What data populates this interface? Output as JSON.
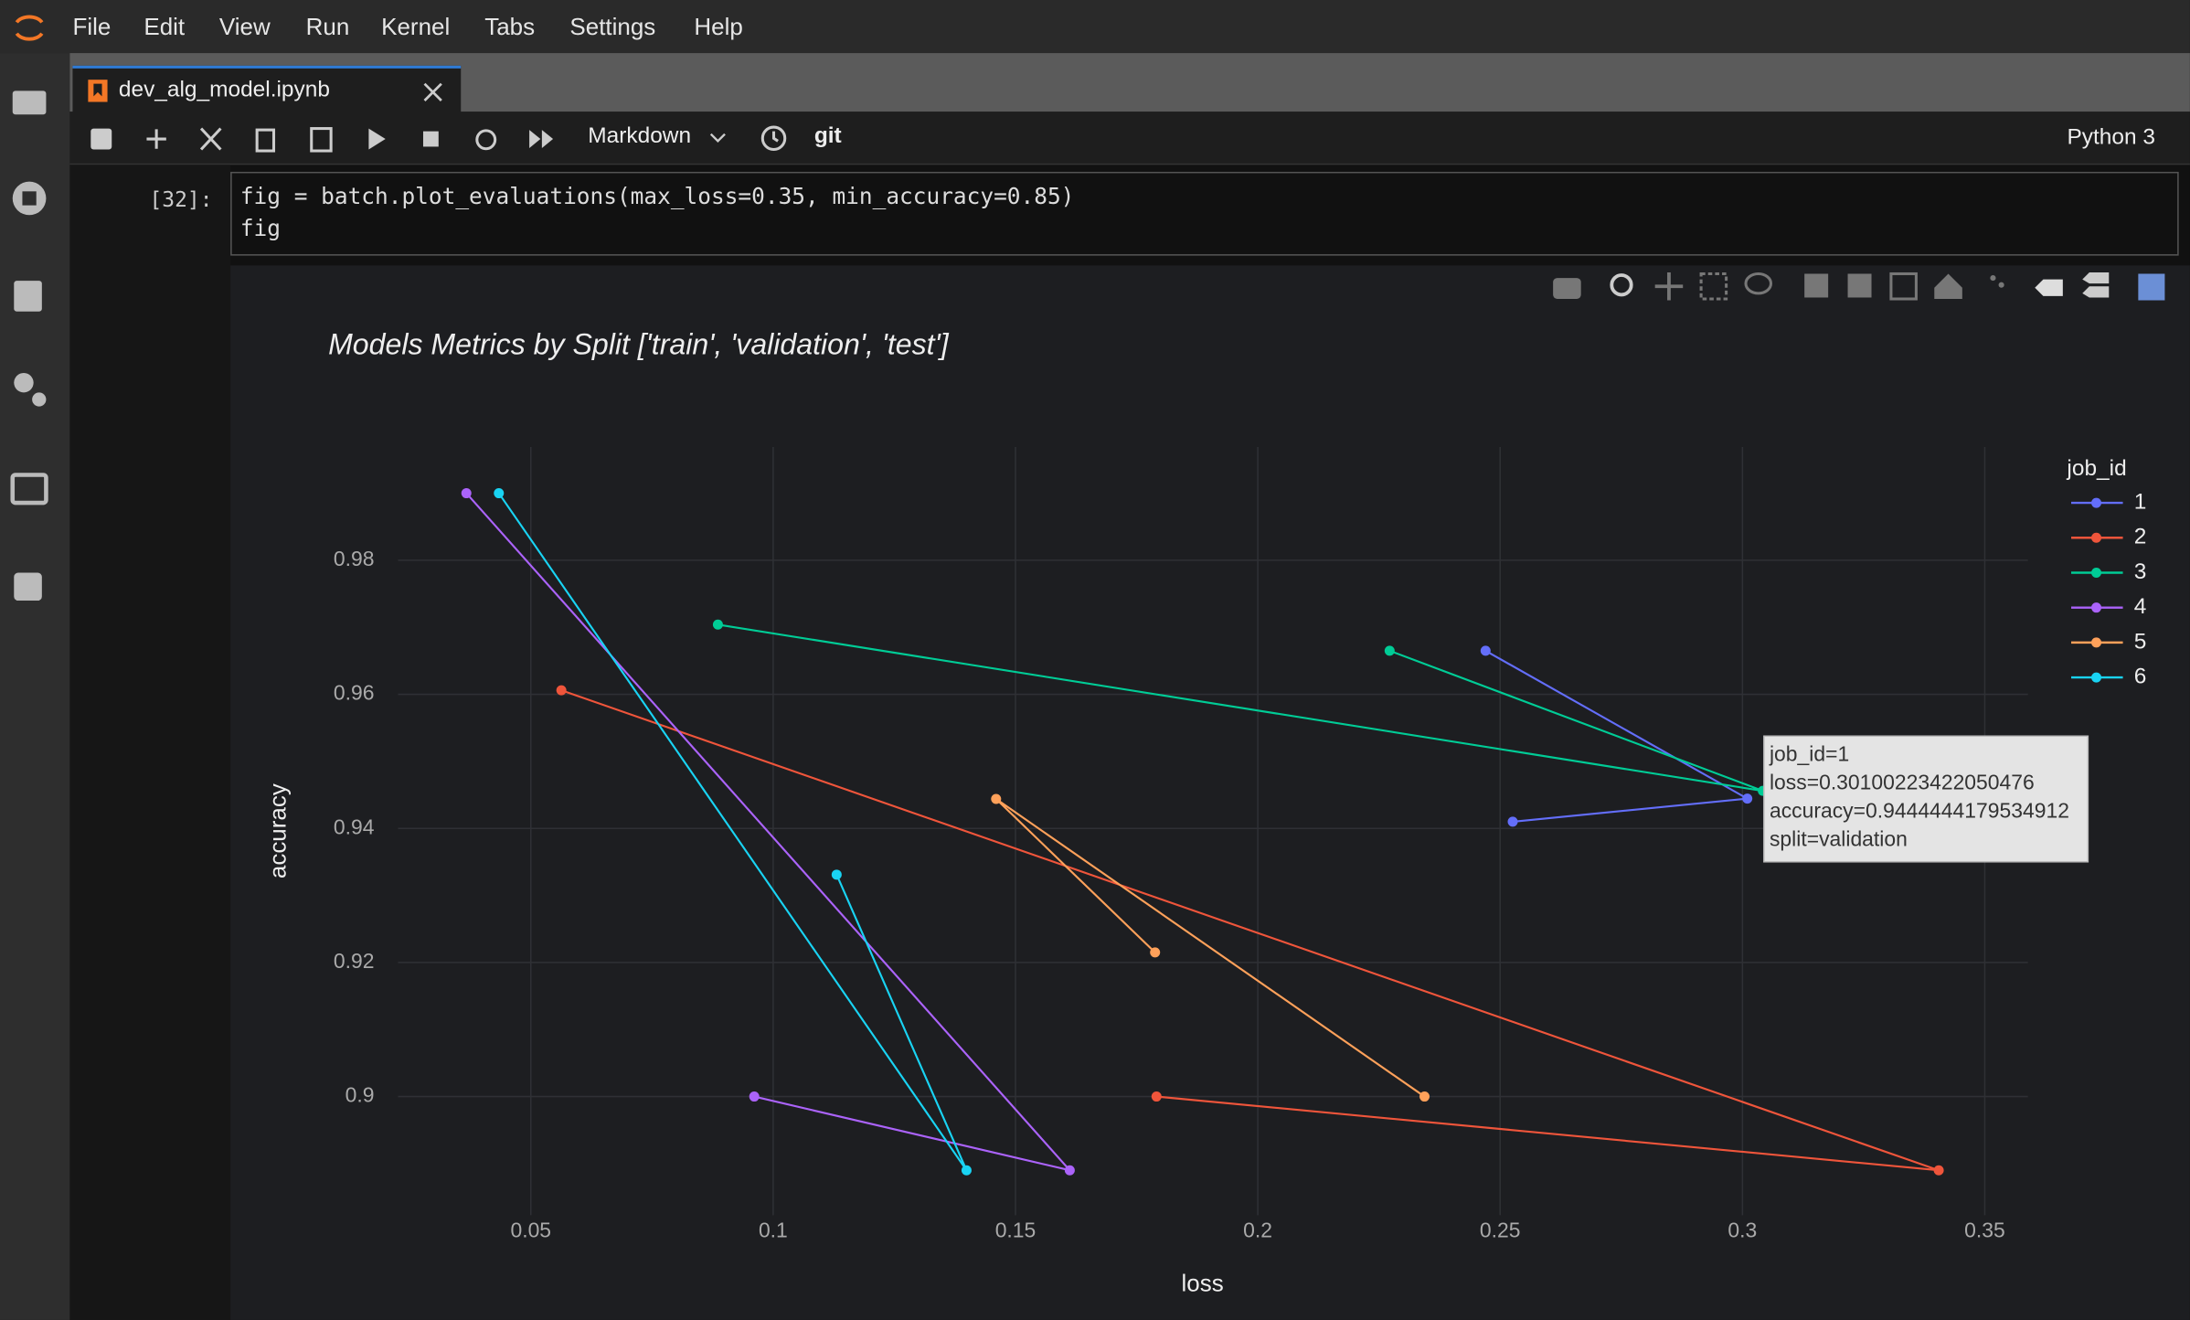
{
  "menu": [
    "File",
    "Edit",
    "View",
    "Run",
    "Kernel",
    "Tabs",
    "Settings",
    "Help"
  ],
  "tab": {
    "title": "dev_alg_model.ipynb"
  },
  "toolbar": {
    "cell_type": "Markdown",
    "git": "git",
    "kernel": "Python 3"
  },
  "cell": {
    "prompt": "[32]:",
    "code": [
      "fig = batch.plot_evaluations(max_loss=0.35, min_accuracy=0.85)",
      "fig"
    ]
  },
  "chart_data": {
    "type": "line",
    "title": "Models Metrics by Split ['train', 'validation', 'test']",
    "x_label": "loss",
    "y_label": "accuracy",
    "legend_title": "job_id",
    "grid": true,
    "xlim": [
      0.0226,
      0.3589
    ],
    "ylim": [
      0.8823,
      0.9969
    ],
    "xticks": [
      0.05,
      0.1,
      0.15,
      0.2,
      0.25,
      0.3,
      0.35
    ],
    "yticks": [
      0.9,
      0.92,
      0.94,
      0.96,
      0.98
    ],
    "series": [
      {
        "name": "1",
        "color": "#636efa",
        "x": [
          0.247,
          0.30100223422050476,
          0.2526
        ],
        "values": [
          0.9665,
          0.9444444179534912,
          0.941
        ]
      },
      {
        "name": "2",
        "color": "#ef553b",
        "x": [
          0.0563,
          0.3405,
          0.1791
        ],
        "values": [
          0.9606,
          0.889,
          0.9
        ]
      },
      {
        "name": "3",
        "color": "#00cc96",
        "x": [
          0.0886,
          0.3042,
          0.2272
        ],
        "values": [
          0.9704,
          0.9456,
          0.9665
        ]
      },
      {
        "name": "4",
        "color": "#ab63fa",
        "x": [
          0.0367,
          0.1612,
          0.0961
        ],
        "values": [
          0.99,
          0.889,
          0.9
        ]
      },
      {
        "name": "5",
        "color": "#ffa15a",
        "x": [
          0.2344,
          0.146,
          0.1788
        ],
        "values": [
          0.9,
          0.9444,
          0.9215
        ]
      },
      {
        "name": "6",
        "color": "#19d3f3",
        "x": [
          0.0434,
          0.1399,
          0.1131
        ],
        "values": [
          0.99,
          0.889,
          0.9331
        ]
      }
    ],
    "hover_label": [
      "job_id=1",
      "loss=0.30100223422050476",
      "accuracy=0.9444444179534912",
      "split=validation"
    ]
  }
}
